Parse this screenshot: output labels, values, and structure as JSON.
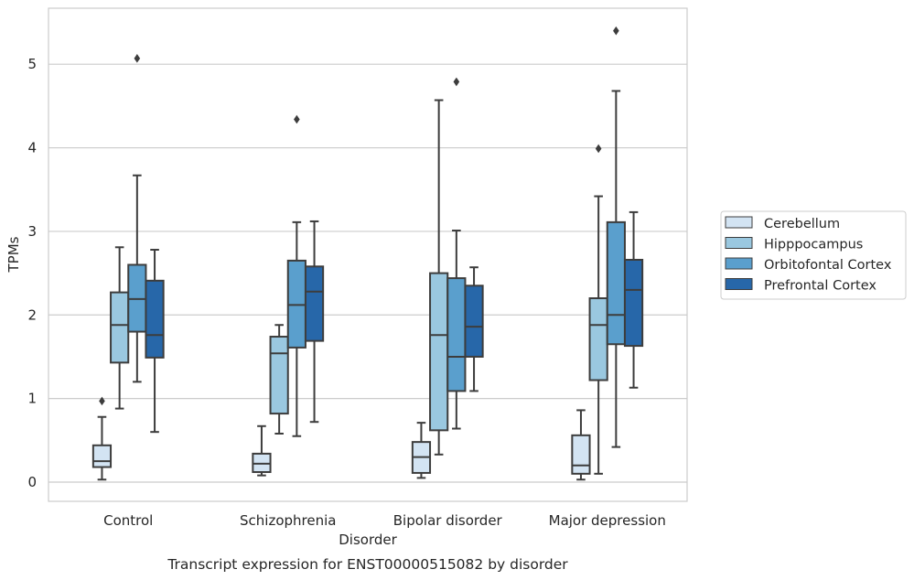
{
  "chart_data": {
    "type": "box",
    "title": "Transcript expression for ENST00000515082 by disorder",
    "xlabel": "Disorder",
    "ylabel": "TPMs",
    "ylim": [
      -0.23,
      5.67
    ],
    "yticks": [
      0,
      1,
      2,
      3,
      4,
      5
    ],
    "grid": "horizontal",
    "legend_position": "right",
    "categories": [
      "Control",
      "Schizophrenia",
      "Bipolar disorder",
      "Major depression"
    ],
    "series": [
      {
        "name": "Cerebellum",
        "color": "#d3e4f3",
        "boxes": [
          {
            "min": 0.03,
            "q1": 0.18,
            "median": 0.25,
            "q3": 0.44,
            "max": 0.78,
            "outliers": [
              0.97
            ]
          },
          {
            "min": 0.08,
            "q1": 0.12,
            "median": 0.22,
            "q3": 0.34,
            "max": 0.67,
            "outliers": []
          },
          {
            "min": 0.05,
            "q1": 0.11,
            "median": 0.3,
            "q3": 0.48,
            "max": 0.71,
            "outliers": []
          },
          {
            "min": 0.03,
            "q1": 0.1,
            "median": 0.2,
            "q3": 0.56,
            "max": 0.86,
            "outliers": []
          }
        ]
      },
      {
        "name": "Hipppocampus",
        "color": "#9ac8e0",
        "boxes": [
          {
            "min": 0.88,
            "q1": 1.43,
            "median": 1.88,
            "q3": 2.27,
            "max": 2.81,
            "outliers": []
          },
          {
            "min": 0.58,
            "q1": 0.82,
            "median": 1.54,
            "q3": 1.74,
            "max": 1.88,
            "outliers": []
          },
          {
            "min": 0.33,
            "q1": 0.62,
            "median": 1.76,
            "q3": 2.5,
            "max": 4.57,
            "outliers": []
          },
          {
            "min": 0.1,
            "q1": 1.22,
            "median": 1.88,
            "q3": 2.2,
            "max": 3.42,
            "outliers": [
              3.99
            ]
          }
        ]
      },
      {
        "name": "Orbitofontal Cortex",
        "color": "#5a9fcd",
        "boxes": [
          {
            "min": 1.2,
            "q1": 1.8,
            "median": 2.19,
            "q3": 2.6,
            "max": 3.67,
            "outliers": [
              5.07
            ]
          },
          {
            "min": 0.55,
            "q1": 1.61,
            "median": 2.12,
            "q3": 2.65,
            "max": 3.11,
            "outliers": [
              4.34
            ]
          },
          {
            "min": 0.64,
            "q1": 1.09,
            "median": 1.5,
            "q3": 2.44,
            "max": 3.01,
            "outliers": [
              4.79
            ]
          },
          {
            "min": 0.42,
            "q1": 1.65,
            "median": 2.0,
            "q3": 3.11,
            "max": 4.68,
            "outliers": [
              5.4
            ]
          }
        ]
      },
      {
        "name": "Prefrontal Cortex",
        "color": "#2767a9",
        "boxes": [
          {
            "min": 0.6,
            "q1": 1.49,
            "median": 1.76,
            "q3": 2.41,
            "max": 2.78,
            "outliers": []
          },
          {
            "min": 0.72,
            "q1": 1.69,
            "median": 2.28,
            "q3": 2.58,
            "max": 3.12,
            "outliers": []
          },
          {
            "min": 1.09,
            "q1": 1.5,
            "median": 1.86,
            "q3": 2.35,
            "max": 2.57,
            "outliers": []
          },
          {
            "min": 1.13,
            "q1": 1.63,
            "median": 2.3,
            "q3": 2.66,
            "max": 3.23,
            "outliers": []
          }
        ]
      }
    ]
  }
}
